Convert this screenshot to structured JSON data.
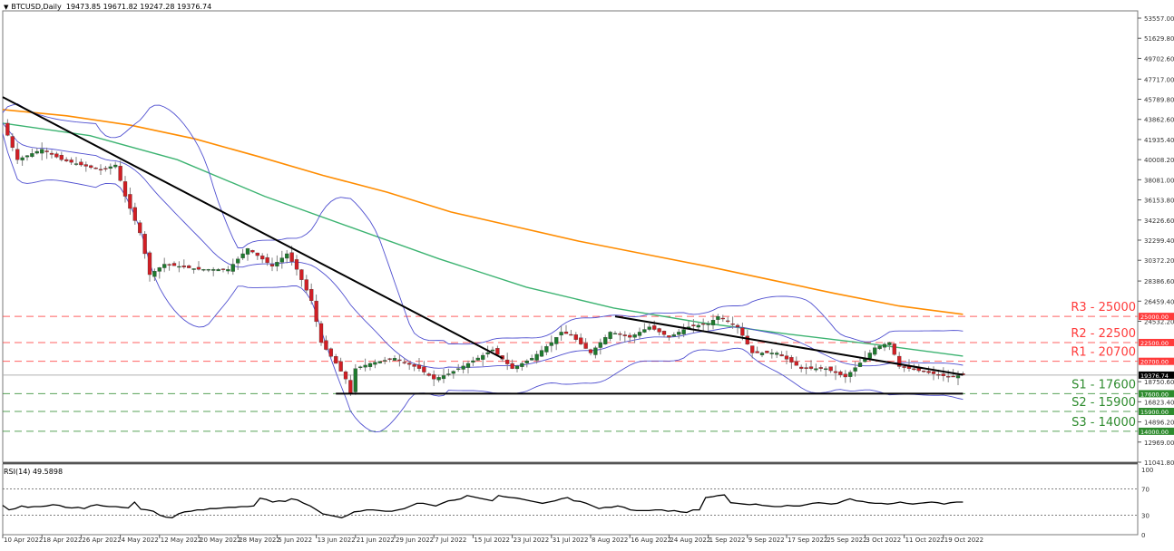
{
  "header": {
    "symbol": "BTCUSD,Daily",
    "ohlc": "19473.85 19671.82 19247.28 19376.74"
  },
  "rsi_header": {
    "label": "RSI(14) 49.5898"
  },
  "colors": {
    "bull": "#1e7a2e",
    "bear": "#d11f25",
    "bollinger": "#5050d0",
    "ma_green": "#3cb371",
    "ma_orange": "#ff8c00",
    "trendline": "#000000",
    "resistance": "#ff3b3b",
    "support": "#2e8b2e",
    "price_tag": "#000000"
  },
  "chart_data": [
    {
      "type": "candlestick",
      "title": "BTCUSD,Daily",
      "current": {
        "open": 19473.85,
        "high": 19671.82,
        "low": 19247.28,
        "close": 19376.74
      },
      "y_ticks": [
        53557.0,
        51629.8,
        49702.6,
        47717.0,
        45789.8,
        43862.6,
        41935.4,
        40008.2,
        38081.0,
        36153.8,
        34226.6,
        32299.4,
        30372.2,
        28386.6,
        26459.4,
        24532.2,
        18750.6,
        16823.4,
        14896.2,
        12969.0,
        11041.8
      ],
      "x_ticks": [
        "10 Apr 2022",
        "18 Apr 2022",
        "26 Apr 2022",
        "4 May 2022",
        "12 May 2022",
        "20 May 2022",
        "28 May 2022",
        "5 Jun 2022",
        "13 Jun 2022",
        "21 Jun 2022",
        "29 Jun 2022",
        "7 Jul 2022",
        "15 Jul 2022",
        "23 Jul 2022",
        "31 Jul 2022",
        "8 Aug 2022",
        "16 Aug 2022",
        "24 Aug 2022",
        "1 Sep 2022",
        "9 Sep 2022",
        "17 Sep 2022",
        "25 Sep 2022",
        "3 Oct 2022",
        "11 Oct 2022",
        "19 Oct 2022"
      ],
      "ylim": [
        10500,
        55000
      ],
      "levels": [
        {
          "name": "R3 - 25000",
          "value": 25000,
          "tag": "25000.00",
          "kind": "resistance"
        },
        {
          "name": "R2 - 22500",
          "value": 22500,
          "tag": "22500.00",
          "kind": "resistance"
        },
        {
          "name": "R1 - 20700",
          "value": 20700,
          "tag": "20700.00",
          "kind": "resistance"
        },
        {
          "name": "S1 - 17600",
          "value": 17600,
          "tag": "17600.00",
          "kind": "support"
        },
        {
          "name": "S2 - 15900",
          "value": 15900,
          "tag": "15900.00",
          "kind": "support"
        },
        {
          "name": "S3 - 14000",
          "value": 14000,
          "tag": "14000.00",
          "kind": "support"
        }
      ],
      "current_price_tag": "19376.74",
      "series": [
        {
          "name": "MA orange (long)",
          "color": "#ff8c00",
          "values_approx": [
            44800,
            44200,
            43300,
            42000,
            40300,
            38500,
            36900,
            35000,
            33600,
            32200,
            31000,
            29800,
            28500,
            27200,
            26000,
            25200
          ]
        },
        {
          "name": "MA green",
          "color": "#3cb371",
          "values_approx": [
            43500,
            42300,
            40000,
            36500,
            33500,
            30500,
            27800,
            25800,
            24400,
            23300,
            22300,
            21200
          ]
        },
        {
          "name": "Bollinger Bands (20)",
          "color": "#5050d0"
        }
      ],
      "trendlines": [
        {
          "name": "downtrend 1",
          "from": [
            "10 Apr 2022",
            46000
          ],
          "to": [
            "21 Jul 2022",
            21000
          ]
        },
        {
          "name": "downtrend 2",
          "from": [
            "13 Aug 2022",
            25000
          ],
          "to": [
            "22 Oct 2022",
            19400
          ]
        },
        {
          "name": "support base",
          "from": [
            "18 Jun 2022",
            17600
          ],
          "to": [
            "22 Oct 2022",
            17600
          ]
        }
      ]
    },
    {
      "type": "line",
      "title": "RSI(14) 49.5898",
      "y_ticks": [
        100,
        70,
        30,
        0
      ],
      "ylim": [
        0,
        100
      ],
      "levels": [
        70,
        30
      ],
      "values_approx": [
        45,
        38,
        40,
        44,
        42,
        43,
        43,
        44,
        46,
        45,
        42,
        41,
        42,
        40,
        44,
        46,
        44,
        43,
        43,
        42,
        41,
        50,
        39,
        38,
        36,
        30,
        27,
        26,
        32,
        35,
        36,
        38,
        38,
        40,
        40,
        41,
        42,
        42,
        43,
        43,
        44,
        56,
        54,
        50,
        52,
        51,
        55,
        53,
        48,
        44,
        38,
        32,
        30,
        28,
        26,
        30,
        35,
        36,
        38,
        38,
        37,
        36,
        36,
        38,
        40,
        44,
        48,
        48,
        46,
        44,
        48,
        52,
        53,
        55,
        60,
        58,
        56,
        54,
        52,
        60,
        58,
        57,
        56,
        54,
        52,
        50,
        48,
        50,
        52,
        55,
        57,
        52,
        51,
        48,
        44,
        40,
        42,
        42,
        44,
        42,
        38,
        37,
        37,
        37,
        38,
        38,
        36,
        37,
        35,
        34,
        38,
        38,
        57,
        58,
        60,
        61,
        49,
        48,
        47,
        46,
        47,
        45,
        44,
        43,
        43,
        45,
        44,
        44,
        46,
        48,
        49,
        48,
        47,
        48,
        52,
        55,
        52,
        51,
        49,
        48,
        48,
        47,
        48,
        50,
        48,
        47,
        48,
        49,
        50,
        49,
        47,
        49,
        50,
        50
      ]
    }
  ]
}
